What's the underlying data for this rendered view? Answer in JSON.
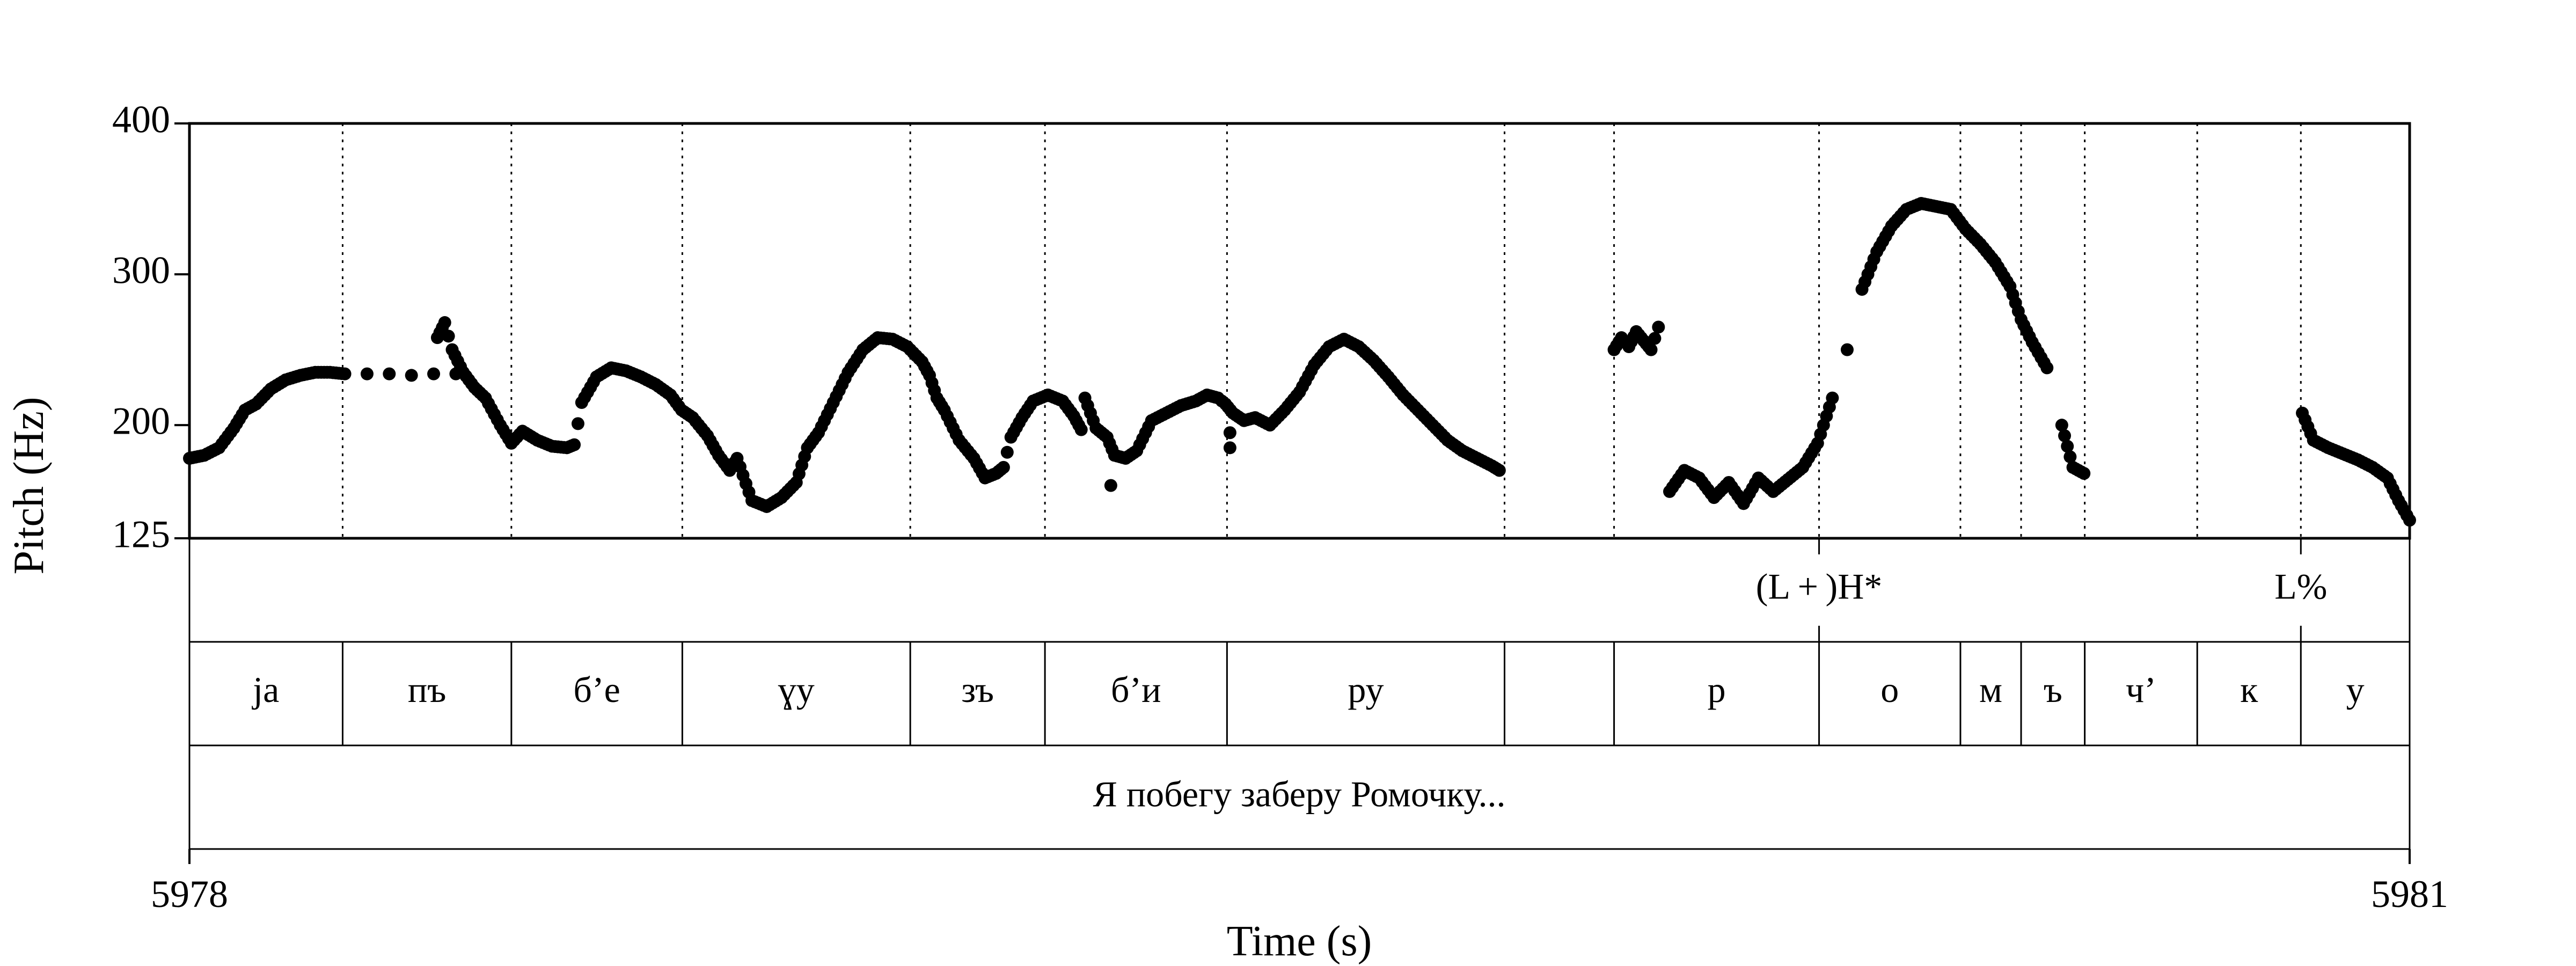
{
  "chart_data": {
    "type": "scatter",
    "xlabel": "Time (s)",
    "ylabel": "Pitch (Hz)",
    "xlim": [
      5978,
      5981
    ],
    "ylim": [
      125,
      400
    ],
    "x_ticks": [
      5978,
      5981
    ],
    "x_tick_labels": [
      "5978",
      "5981"
    ],
    "y_ticks": [
      125,
      200,
      300,
      400
    ],
    "y_tick_labels": [
      "125",
      "200",
      "300",
      "400"
    ],
    "marker_color": "#000000",
    "intervals": [
      5978.0,
      5978.207,
      5978.435,
      5978.666,
      5978.974,
      5979.156,
      5979.402,
      5979.777,
      5979.925,
      5980.202,
      5980.393,
      5980.475,
      5980.561,
      5980.713,
      5980.853,
      5981.0
    ],
    "tiers": [
      {
        "name": "tones",
        "labels": [
          {
            "text": "(L + )H*",
            "time": 5980.202
          },
          {
            "text": "L%",
            "time": 5980.853
          }
        ]
      },
      {
        "name": "syllables",
        "labels": [
          "ja",
          "пъ",
          "б’е",
          "ɣу",
          "зъ",
          "б’и",
          "ру",
          "",
          "р",
          "о",
          "м",
          "ъ",
          "ч’",
          "к",
          "у"
        ]
      },
      {
        "name": "utterance",
        "label": "Я побегу заберу Ромочку..."
      }
    ],
    "series": [
      {
        "points": [
          [
            5978.0,
            178
          ],
          [
            5978.02,
            180
          ],
          [
            5978.04,
            185
          ],
          [
            5978.06,
            198
          ],
          [
            5978.075,
            210
          ],
          [
            5978.09,
            214
          ],
          [
            5978.11,
            224
          ],
          [
            5978.13,
            230
          ],
          [
            5978.15,
            233
          ],
          [
            5978.17,
            235
          ],
          [
            5978.19,
            235
          ],
          [
            5978.21,
            234
          ],
          [
            5978.24,
            234
          ],
          [
            5978.27,
            234
          ],
          [
            5978.3,
            233
          ],
          [
            5978.33,
            234
          ],
          [
            5978.36,
            234
          ],
          [
            5978.335,
            258
          ],
          [
            5978.345,
            268
          ],
          [
            5978.355,
            250
          ],
          [
            5978.37,
            235
          ],
          [
            5978.385,
            225
          ],
          [
            5978.4,
            218
          ],
          [
            5978.42,
            200
          ],
          [
            5978.435,
            188
          ],
          [
            5978.45,
            196
          ],
          [
            5978.47,
            190
          ],
          [
            5978.49,
            186
          ],
          [
            5978.51,
            185
          ],
          [
            5978.52,
            187
          ],
          [
            5978.53,
            215
          ],
          [
            5978.55,
            232
          ],
          [
            5978.57,
            238
          ],
          [
            5978.59,
            236
          ],
          [
            5978.61,
            232
          ],
          [
            5978.63,
            227
          ],
          [
            5978.65,
            220
          ],
          [
            5978.665,
            210
          ],
          [
            5978.68,
            205
          ],
          [
            5978.7,
            193
          ],
          [
            5978.715,
            180
          ],
          [
            5978.73,
            170
          ],
          [
            5978.74,
            178
          ],
          [
            5978.76,
            150
          ],
          [
            5978.78,
            146
          ],
          [
            5978.8,
            152
          ],
          [
            5978.82,
            162
          ],
          [
            5978.835,
            185
          ],
          [
            5978.85,
            195
          ],
          [
            5978.87,
            215
          ],
          [
            5978.89,
            235
          ],
          [
            5978.91,
            250
          ],
          [
            5978.93,
            258
          ],
          [
            5978.95,
            257
          ],
          [
            5978.97,
            252
          ],
          [
            5978.99,
            242
          ],
          [
            5979.0,
            233
          ],
          [
            5979.01,
            218
          ],
          [
            5979.02,
            210
          ],
          [
            5979.04,
            190
          ],
          [
            5979.06,
            178
          ],
          [
            5979.075,
            165
          ],
          [
            5979.09,
            168
          ],
          [
            5979.1,
            172
          ],
          [
            5979.11,
            192
          ],
          [
            5979.125,
            205
          ],
          [
            5979.14,
            216
          ],
          [
            5979.16,
            220
          ],
          [
            5979.18,
            216
          ],
          [
            5979.195,
            206
          ],
          [
            5979.205,
            197
          ],
          [
            5979.21,
            218
          ],
          [
            5979.225,
            198
          ],
          [
            5979.24,
            192
          ],
          [
            5979.25,
            180
          ],
          [
            5979.265,
            178
          ],
          [
            5979.28,
            183
          ],
          [
            5979.3,
            203
          ],
          [
            5979.32,
            208
          ],
          [
            5979.34,
            213
          ],
          [
            5979.36,
            216
          ],
          [
            5979.375,
            220
          ],
          [
            5979.39,
            218
          ],
          [
            5979.4,
            214
          ],
          [
            5979.41,
            208
          ],
          [
            5979.425,
            203
          ],
          [
            5979.44,
            205
          ],
          [
            5979.46,
            200
          ],
          [
            5979.48,
            210
          ],
          [
            5979.5,
            222
          ],
          [
            5979.52,
            240
          ],
          [
            5979.54,
            252
          ],
          [
            5979.56,
            257
          ],
          [
            5979.58,
            252
          ],
          [
            5979.6,
            243
          ],
          [
            5979.62,
            232
          ],
          [
            5979.64,
            220
          ],
          [
            5979.66,
            210
          ],
          [
            5979.68,
            200
          ],
          [
            5979.7,
            190
          ],
          [
            5979.72,
            183
          ],
          [
            5979.74,
            178
          ],
          [
            5979.76,
            173
          ],
          [
            5979.77,
            170
          ],
          [
            5979.245,
            160
          ],
          [
            5979.406,
            185
          ],
          [
            5979.406,
            195
          ],
          [
            5979.925,
            250
          ],
          [
            5979.935,
            258
          ],
          [
            5979.945,
            252
          ],
          [
            5979.955,
            262
          ],
          [
            5979.965,
            256
          ],
          [
            5979.975,
            250
          ],
          [
            5979.985,
            265
          ],
          [
            5980.0,
            156
          ],
          [
            5980.02,
            170
          ],
          [
            5980.04,
            165
          ],
          [
            5980.06,
            152
          ],
          [
            5980.08,
            162
          ],
          [
            5980.1,
            148
          ],
          [
            5980.12,
            165
          ],
          [
            5980.14,
            156
          ],
          [
            5980.16,
            164
          ],
          [
            5980.18,
            172
          ],
          [
            5980.2,
            188
          ],
          [
            5980.22,
            218
          ],
          [
            5980.24,
            250
          ],
          [
            5980.26,
            290
          ],
          [
            5980.28,
            315
          ],
          [
            5980.3,
            332
          ],
          [
            5980.32,
            343
          ],
          [
            5980.34,
            347
          ],
          [
            5980.36,
            345
          ],
          [
            5980.38,
            343
          ],
          [
            5980.4,
            330
          ],
          [
            5980.42,
            320
          ],
          [
            5980.44,
            308
          ],
          [
            5980.46,
            292
          ],
          [
            5980.475,
            270
          ],
          [
            5980.49,
            255
          ],
          [
            5980.51,
            238
          ],
          [
            5980.53,
            200
          ],
          [
            5980.545,
            172
          ],
          [
            5980.56,
            168
          ],
          [
            5980.855,
            208
          ],
          [
            5980.87,
            190
          ],
          [
            5980.89,
            185
          ],
          [
            5980.91,
            181
          ],
          [
            5980.93,
            177
          ],
          [
            5980.95,
            172
          ],
          [
            5980.97,
            165
          ],
          [
            5980.985,
            150
          ],
          [
            5981.0,
            137
          ]
        ]
      }
    ]
  }
}
